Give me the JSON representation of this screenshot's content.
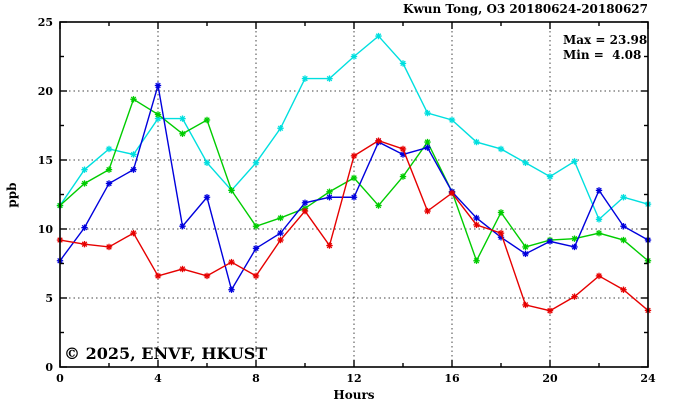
{
  "chart": {
    "title": "Kwun Tong, O3 20180624-20180627",
    "max_label": "Max = 23.98",
    "min_label": "Min =  4.08",
    "watermark": "© 2025, ENVF, HKUST",
    "xlabel": "Hours",
    "ylabel": "ppb"
  },
  "chart_data": {
    "type": "line",
    "title": "Kwun Tong, O3 20180624-20180627",
    "xlabel": "Hours",
    "ylabel": "ppb",
    "xlim": [
      0,
      24
    ],
    "ylim": [
      0,
      25
    ],
    "x_major_ticks": [
      0,
      4,
      8,
      12,
      16,
      20,
      24
    ],
    "x_minor_ticks": [
      2,
      6,
      10,
      14,
      18,
      22
    ],
    "y_major_ticks": [
      0,
      5,
      10,
      15,
      20,
      25
    ],
    "y_minor_ticks": [
      2.5,
      7.5,
      12.5,
      17.5,
      22.5
    ],
    "x_gridlines": [
      4,
      8,
      12,
      16,
      20
    ],
    "y_gridlines": [
      5,
      10,
      15,
      20
    ],
    "grid": "dotted",
    "legend": "none",
    "annotations": {
      "max": 23.98,
      "min": 4.08
    },
    "x": [
      0,
      1,
      2,
      3,
      4,
      5,
      6,
      7,
      8,
      9,
      10,
      11,
      12,
      13,
      14,
      15,
      16,
      17,
      18,
      19,
      20,
      21,
      22,
      23,
      24
    ],
    "series": [
      {
        "name": "series-cyan",
        "color": "#00dfdf",
        "values": [
          11.7,
          14.3,
          15.8,
          15.4,
          18.0,
          18.0,
          14.8,
          12.8,
          14.8,
          17.3,
          20.9,
          20.9,
          22.5,
          23.98,
          22.0,
          18.4,
          17.9,
          16.3,
          15.8,
          14.8,
          13.8,
          14.9,
          10.7,
          12.3,
          11.8
        ]
      },
      {
        "name": "series-green",
        "color": "#00cc00",
        "values": [
          11.7,
          13.3,
          14.3,
          19.4,
          18.3,
          16.9,
          17.9,
          12.8,
          10.2,
          10.8,
          11.5,
          12.7,
          13.7,
          11.7,
          13.8,
          16.3,
          12.7,
          7.7,
          11.2,
          8.7,
          9.2,
          9.3,
          9.7,
          9.2,
          7.7
        ]
      },
      {
        "name": "series-blue",
        "color": "#0000dd",
        "values": [
          7.7,
          10.1,
          13.3,
          14.3,
          20.4,
          10.2,
          12.3,
          5.6,
          8.6,
          9.7,
          11.9,
          12.3,
          12.3,
          16.3,
          15.4,
          15.9,
          12.7,
          10.8,
          9.4,
          8.2,
          9.1,
          8.7,
          12.8,
          10.2,
          9.2
        ]
      },
      {
        "name": "series-red",
        "color": "#e60000",
        "values": [
          9.2,
          8.9,
          8.7,
          9.7,
          6.6,
          7.1,
          6.6,
          7.6,
          6.6,
          9.2,
          11.3,
          8.8,
          15.3,
          16.4,
          15.8,
          11.3,
          12.6,
          10.3,
          9.7,
          4.5,
          4.08,
          5.1,
          6.6,
          5.6,
          4.1
        ]
      }
    ]
  }
}
